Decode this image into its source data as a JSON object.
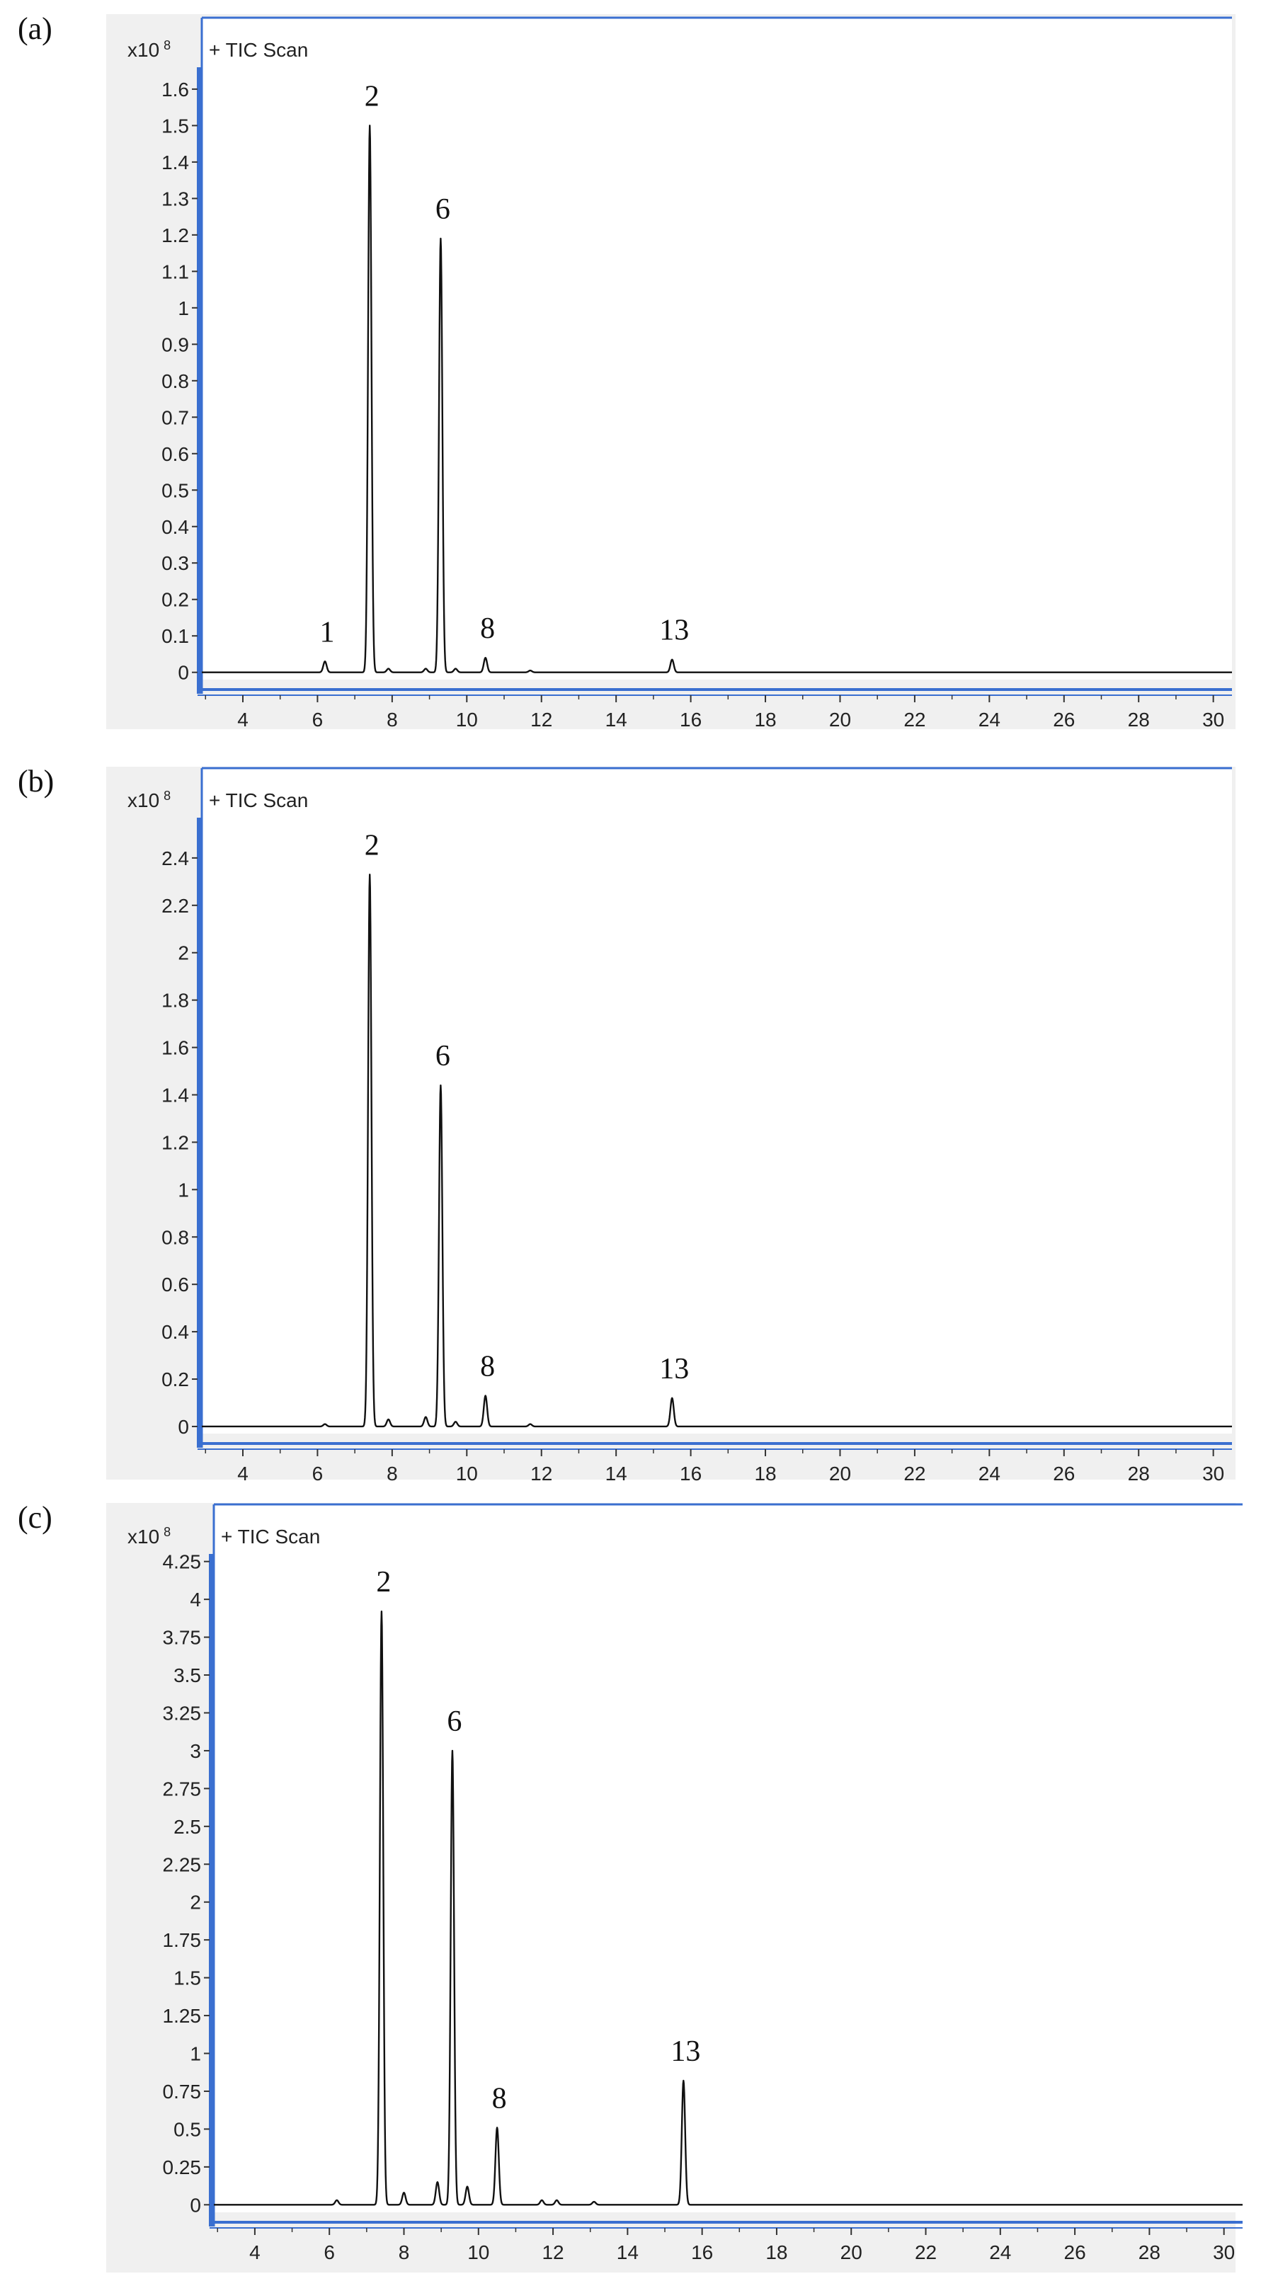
{
  "colors": {
    "panel_background": "#f0f0f0",
    "plot_background": "#ffffff",
    "axis_accent": "#3a6fd0",
    "trace": "#111111"
  },
  "chart_data": [
    {
      "panel_label": "(a)",
      "type": "line",
      "series_label": "+ TIC Scan",
      "y_unit_prefix": "x10",
      "y_unit_exponent": "8",
      "xlim": [
        2.9,
        30.5
      ],
      "ylim": [
        -0.02,
        1.66
      ],
      "x_ticks": [
        "4",
        "6",
        "8",
        "10",
        "12",
        "14",
        "16",
        "18",
        "20",
        "22",
        "24",
        "26",
        "28",
        "30"
      ],
      "y_ticks": [
        "0",
        "0.1",
        "0.2",
        "0.3",
        "0.4",
        "0.5",
        "0.6",
        "0.7",
        "0.8",
        "0.9",
        "1",
        "1.1",
        "1.2",
        "1.3",
        "1.4",
        "1.5",
        "1.6"
      ],
      "grid": false,
      "peaks": [
        {
          "x": 6.2,
          "y": 0.03,
          "label": "1"
        },
        {
          "x": 7.4,
          "y": 1.5,
          "label": "2"
        },
        {
          "x": 7.9,
          "y": 0.01
        },
        {
          "x": 8.9,
          "y": 0.01
        },
        {
          "x": 9.3,
          "y": 1.19,
          "label": "6"
        },
        {
          "x": 9.7,
          "y": 0.01
        },
        {
          "x": 10.5,
          "y": 0.04,
          "label": "8"
        },
        {
          "x": 11.7,
          "y": 0.005
        },
        {
          "x": 15.5,
          "y": 0.035,
          "label": "13"
        }
      ]
    },
    {
      "panel_label": "(b)",
      "type": "line",
      "series_label": "+ TIC Scan",
      "y_unit_prefix": "x10",
      "y_unit_exponent": "8",
      "xlim": [
        2.9,
        30.5
      ],
      "ylim": [
        -0.03,
        2.57
      ],
      "x_ticks": [
        "4",
        "6",
        "8",
        "10",
        "12",
        "14",
        "16",
        "18",
        "20",
        "22",
        "24",
        "26",
        "28",
        "30"
      ],
      "y_ticks": [
        "0",
        "0.2",
        "0.4",
        "0.6",
        "0.8",
        "1",
        "1.2",
        "1.4",
        "1.6",
        "1.8",
        "2",
        "2.2",
        "2.4"
      ],
      "grid": false,
      "peaks": [
        {
          "x": 6.2,
          "y": 0.01
        },
        {
          "x": 7.4,
          "y": 2.33,
          "label": "2"
        },
        {
          "x": 7.9,
          "y": 0.03
        },
        {
          "x": 8.9,
          "y": 0.04
        },
        {
          "x": 9.3,
          "y": 1.44,
          "label": "6"
        },
        {
          "x": 9.7,
          "y": 0.02
        },
        {
          "x": 10.5,
          "y": 0.13,
          "label": "8"
        },
        {
          "x": 11.7,
          "y": 0.01
        },
        {
          "x": 15.5,
          "y": 0.12,
          "label": "13"
        }
      ]
    },
    {
      "panel_label": "(c)",
      "type": "line",
      "series_label": "+ TIC Scan",
      "y_unit_prefix": "x10",
      "y_unit_exponent": "8",
      "xlim": [
        2.9,
        30.5
      ],
      "ylim": [
        -0.05,
        4.3
      ],
      "x_ticks": [
        "4",
        "6",
        "8",
        "10",
        "12",
        "14",
        "16",
        "18",
        "20",
        "22",
        "24",
        "26",
        "28",
        "30"
      ],
      "y_ticks": [
        "0",
        "0.25",
        "0.5",
        "0.75",
        "1",
        "1.25",
        "1.5",
        "1.75",
        "2",
        "2.25",
        "2.5",
        "2.75",
        "3",
        "3.25",
        "3.5",
        "3.75",
        "4",
        "4.25"
      ],
      "grid": false,
      "peaks": [
        {
          "x": 6.2,
          "y": 0.03
        },
        {
          "x": 7.4,
          "y": 3.92,
          "label": "2"
        },
        {
          "x": 8.0,
          "y": 0.08
        },
        {
          "x": 8.9,
          "y": 0.15
        },
        {
          "x": 9.3,
          "y": 3.0,
          "label": "6"
        },
        {
          "x": 9.7,
          "y": 0.12
        },
        {
          "x": 10.5,
          "y": 0.51,
          "label": "8"
        },
        {
          "x": 11.7,
          "y": 0.03
        },
        {
          "x": 12.1,
          "y": 0.03
        },
        {
          "x": 13.1,
          "y": 0.02
        },
        {
          "x": 15.5,
          "y": 0.82,
          "label": "13"
        }
      ]
    }
  ]
}
